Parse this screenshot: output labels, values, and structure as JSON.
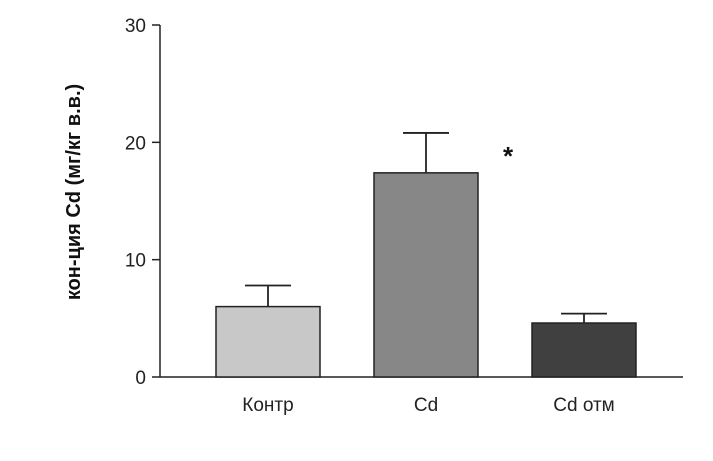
{
  "chart_data": {
    "type": "bar",
    "title": "",
    "xlabel": "",
    "ylabel": "кон-ция Cd (мг/кг в.в.)",
    "ylim": [
      0,
      30
    ],
    "yticks": [
      0,
      10,
      20,
      30
    ],
    "categories": [
      "Контр",
      "Cd",
      "Cd отм"
    ],
    "values": [
      6.0,
      17.4,
      4.6
    ],
    "errors": [
      1.8,
      3.4,
      0.8
    ],
    "colors": [
      "#c8c8c8",
      "#878787",
      "#404040"
    ],
    "annotations": [
      {
        "category": "Cd",
        "text": "*"
      }
    ],
    "grid": false,
    "legend": "none"
  }
}
